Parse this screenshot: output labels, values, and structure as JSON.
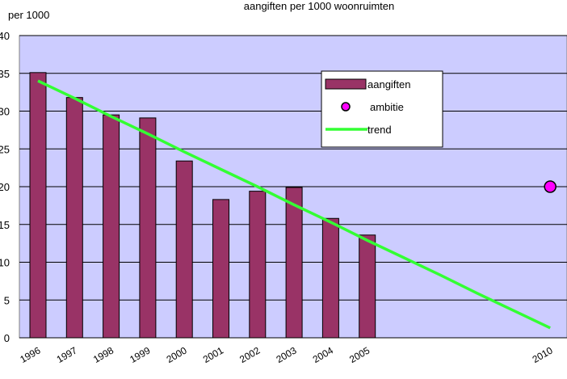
{
  "chart_data": {
    "type": "bar",
    "title": "aangiften per 1000 woonruimten",
    "y_label": "per 1000",
    "categories": [
      "1996",
      "1997",
      "1998",
      "1999",
      "2000",
      "2001",
      "2002",
      "2003",
      "2004",
      "2005",
      null,
      null,
      null,
      null,
      "2010"
    ],
    "series": [
      {
        "name": "aangiften",
        "type": "bar",
        "color": "#993366",
        "values": [
          35.1,
          31.8,
          29.5,
          29.1,
          23.4,
          18.3,
          19.4,
          19.9,
          15.8,
          13.6,
          null,
          null,
          null,
          null,
          null
        ]
      },
      {
        "name": "ambitie",
        "type": "scatter",
        "color": "#ff00ff",
        "values": [
          null,
          null,
          null,
          null,
          null,
          null,
          null,
          null,
          null,
          null,
          null,
          null,
          null,
          null,
          20
        ]
      },
      {
        "name": "trend",
        "type": "line",
        "color": "#33ff33",
        "values": [
          34.0,
          31.7,
          29.3,
          27.0,
          24.6,
          22.3,
          20.0,
          17.6,
          15.3,
          12.9,
          10.6,
          8.3,
          5.9,
          3.6,
          1.3
        ]
      }
    ],
    "ylim": [
      0,
      40
    ],
    "yticks": [
      0,
      5,
      10,
      15,
      20,
      25,
      30,
      35,
      40
    ],
    "grid": true
  }
}
